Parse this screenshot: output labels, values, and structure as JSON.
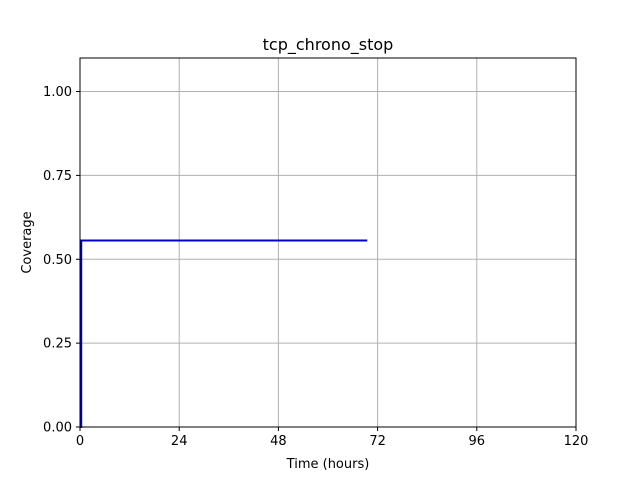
{
  "chart_data": {
    "type": "line",
    "title": "tcp_chrono_stop",
    "xlabel": "Time (hours)",
    "ylabel": "Coverage",
    "xlim": [
      0,
      120
    ],
    "ylim": [
      0,
      1.1
    ],
    "xticks": [
      0,
      24,
      48,
      72,
      96,
      120
    ],
    "yticks": [
      0.0,
      0.25,
      0.5,
      0.75,
      1.0
    ],
    "xtick_labels": [
      "0",
      "24",
      "48",
      "72",
      "96",
      "120"
    ],
    "ytick_labels": [
      "0.00",
      "0.25",
      "0.50",
      "0.75",
      "1.00"
    ],
    "grid": true,
    "legend": null,
    "series": [
      {
        "color": "#0000cc",
        "step": true,
        "points": [
          [
            0,
            0
          ],
          [
            0.3,
            0.556
          ],
          [
            69.5,
            0.556
          ]
        ]
      }
    ]
  }
}
